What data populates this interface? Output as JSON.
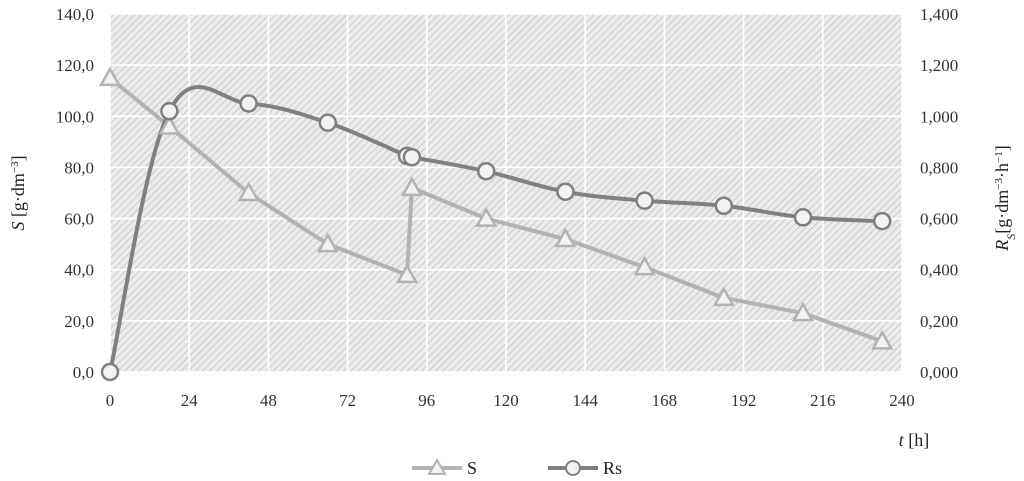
{
  "chart_data": {
    "type": "line",
    "x_ticks": [
      "0",
      "24",
      "48",
      "72",
      "96",
      "120",
      "144",
      "168",
      "192",
      "216",
      "240"
    ],
    "y_left_ticks": [
      "0,0",
      "20,0",
      "40,0",
      "60,0",
      "80,0",
      "100,0",
      "120,0",
      "140,0"
    ],
    "y_right_ticks": [
      "0,000",
      "0,200",
      "0,400",
      "0,600",
      "0,800",
      "1,000",
      "1,200",
      "1,400"
    ],
    "xlim": [
      0,
      240
    ],
    "ylim_left": [
      0,
      140
    ],
    "ylim_right": [
      0,
      1.4
    ],
    "grid": true,
    "xlabel": {
      "italic": "t",
      "rest": " [h]"
    },
    "ylabel_left": {
      "italic": "S",
      "rest": " [g·dm",
      "sup": "−3",
      "end": "]"
    },
    "ylabel_right": {
      "italic": "R",
      "sub": "S",
      "rest": "[g·dm",
      "sup": "−3",
      "mid": "·h",
      "sup2": "−1",
      "end": "]"
    },
    "legend_position": "bottom-center",
    "series": [
      {
        "name": "S",
        "axis": "left",
        "marker": "triangle",
        "color": "#b3b3b3",
        "x": [
          0,
          18,
          42,
          66,
          90,
          91.5,
          114,
          138,
          162,
          186,
          210,
          234
        ],
        "y": [
          115,
          96,
          70,
          50,
          38,
          72,
          60,
          52,
          41,
          29,
          23,
          12
        ]
      },
      {
        "name": "Rs",
        "axis": "right",
        "marker": "circle",
        "color": "#808080",
        "x": [
          0,
          18,
          42,
          66,
          90,
          91.5,
          114,
          138,
          162,
          186,
          210,
          234
        ],
        "y": [
          0.0,
          1.02,
          1.05,
          0.975,
          0.845,
          0.84,
          0.785,
          0.705,
          0.67,
          0.65,
          0.605,
          0.59
        ]
      }
    ]
  }
}
